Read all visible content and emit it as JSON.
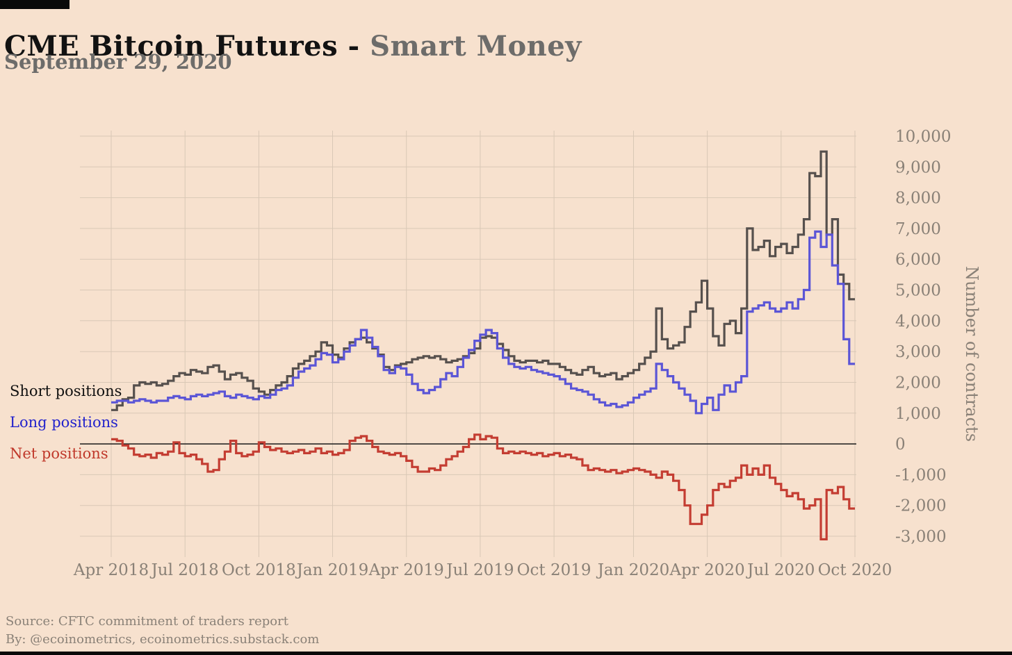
{
  "page": {
    "title_main": "CME Bitcoin Futures - ",
    "title_accent": "Smart Money",
    "subtitle": "September 29, 2020",
    "footer_line1": "Source: CFTC commitment of traders report",
    "footer_line2": "By: @ecoinometrics, ecoinometrics.substack.com"
  },
  "colors": {
    "background": "#f7e1ce",
    "grid": "#d9c8b6",
    "zero_line": "#1a1a1a",
    "tick_text": "#8a8177",
    "short_line": "#56504d",
    "long_line": "#5b55d6",
    "net_line": "#c43d32",
    "short_label": "#111111",
    "long_label": "#2222cc",
    "net_label": "#c0392b"
  },
  "chart_data": {
    "type": "line",
    "style": "step",
    "title": "CME Bitcoin Futures - Smart Money",
    "subtitle": "September 29, 2020",
    "ylabel_right": "Number of contracts",
    "ylim": [
      -3000,
      10000
    ],
    "y_tick_step": 1000,
    "grid": true,
    "legend_position": "left-inline",
    "frequency": "weekly",
    "x_range": [
      "Apr 2018",
      "Sep 2020"
    ],
    "x_tick_labels": [
      "Apr 2018",
      "Jul 2018",
      "Oct 2018",
      "Jan 2019",
      "Apr 2019",
      "Jul 2019",
      "Oct 2019",
      "Jan 2020",
      "Apr 2020",
      "Jul 2020",
      "Oct 2020"
    ],
    "x_tick_week_indices": [
      0,
      13,
      26,
      39,
      52,
      65,
      78,
      92,
      105,
      118,
      131
    ],
    "series": [
      {
        "name": "Short positions",
        "color": "#56504d",
        "values": [
          1100,
          1250,
          1450,
          1500,
          1900,
          2000,
          1950,
          2000,
          1900,
          1950,
          2050,
          2200,
          2300,
          2250,
          2400,
          2350,
          2300,
          2500,
          2550,
          2350,
          2100,
          2250,
          2300,
          2150,
          2050,
          1800,
          1700,
          1600,
          1750,
          1900,
          2000,
          2200,
          2450,
          2600,
          2700,
          2850,
          3000,
          3300,
          3200,
          2900,
          2800,
          3100,
          3300,
          3400,
          3450,
          3300,
          3100,
          2900,
          2500,
          2400,
          2550,
          2600,
          2650,
          2750,
          2800,
          2850,
          2800,
          2850,
          2750,
          2650,
          2700,
          2750,
          2850,
          2950,
          3100,
          3450,
          3500,
          3450,
          3250,
          3050,
          2850,
          2700,
          2650,
          2700,
          2700,
          2650,
          2700,
          2600,
          2600,
          2500,
          2400,
          2300,
          2250,
          2400,
          2500,
          2300,
          2200,
          2250,
          2300,
          2100,
          2200,
          2300,
          2400,
          2600,
          2800,
          3000,
          4400,
          3400,
          3100,
          3200,
          3300,
          3800,
          4300,
          4600,
          5300,
          4400,
          3500,
          3200,
          3900,
          4000,
          3600,
          4400,
          7000,
          6300,
          6400,
          6600,
          6100,
          6400,
          6500,
          6200,
          6400,
          6800,
          7300,
          8800,
          8700,
          9500,
          6800,
          7300,
          5500,
          5200,
          4700
        ]
      },
      {
        "name": "Long positions",
        "color": "#5b55d6",
        "values": [
          1350,
          1400,
          1400,
          1350,
          1400,
          1450,
          1400,
          1350,
          1400,
          1400,
          1500,
          1550,
          1500,
          1450,
          1550,
          1600,
          1550,
          1600,
          1650,
          1700,
          1550,
          1500,
          1600,
          1550,
          1500,
          1450,
          1550,
          1500,
          1600,
          1750,
          1800,
          1900,
          2150,
          2350,
          2450,
          2550,
          2750,
          2950,
          2900,
          2650,
          2750,
          3000,
          3200,
          3400,
          3700,
          3450,
          3150,
          2850,
          2400,
          2300,
          2500,
          2450,
          2250,
          1950,
          1750,
          1650,
          1750,
          1850,
          2100,
          2300,
          2200,
          2500,
          2800,
          3050,
          3350,
          3550,
          3700,
          3600,
          3100,
          2800,
          2600,
          2500,
          2450,
          2500,
          2400,
          2350,
          2300,
          2250,
          2200,
          2100,
          1950,
          1800,
          1750,
          1700,
          1600,
          1450,
          1350,
          1250,
          1300,
          1200,
          1250,
          1350,
          1500,
          1600,
          1700,
          1800,
          2600,
          2400,
          2200,
          2000,
          1800,
          1600,
          1400,
          1000,
          1300,
          1500,
          1100,
          1600,
          1900,
          1700,
          2000,
          2200,
          4300,
          4400,
          4500,
          4600,
          4400,
          4300,
          4400,
          4600,
          4400,
          4700,
          5000,
          6700,
          6900,
          6400,
          6800,
          5800,
          5200,
          3400,
          2600
        ]
      },
      {
        "name": "Net positions",
        "color": "#c43d32",
        "values": [
          150,
          100,
          -50,
          -150,
          -350,
          -400,
          -350,
          -450,
          -300,
          -350,
          -250,
          50,
          -300,
          -400,
          -350,
          -500,
          -650,
          -900,
          -850,
          -500,
          -250,
          100,
          -300,
          -400,
          -350,
          -250,
          50,
          -100,
          -200,
          -150,
          -250,
          -300,
          -250,
          -200,
          -300,
          -250,
          -150,
          -300,
          -250,
          -350,
          -300,
          -200,
          100,
          200,
          250,
          100,
          -100,
          -250,
          -300,
          -350,
          -300,
          -400,
          -550,
          -750,
          -900,
          -900,
          -800,
          -850,
          -700,
          -500,
          -400,
          -250,
          -100,
          150,
          300,
          150,
          250,
          200,
          -150,
          -300,
          -250,
          -300,
          -250,
          -300,
          -350,
          -300,
          -400,
          -350,
          -300,
          -400,
          -350,
          -450,
          -500,
          -700,
          -850,
          -800,
          -850,
          -900,
          -850,
          -950,
          -900,
          -850,
          -800,
          -850,
          -900,
          -1000,
          -1100,
          -900,
          -1000,
          -1200,
          -1500,
          -2000,
          -2600,
          -2600,
          -2300,
          -2000,
          -1500,
          -1300,
          -1400,
          -1200,
          -1100,
          -700,
          -1000,
          -800,
          -1000,
          -700,
          -1100,
          -1300,
          -1500,
          -1700,
          -1600,
          -1800,
          -2100,
          -2000,
          -1800,
          -3100,
          -1500,
          -1600,
          -1400,
          -1800,
          -2100
        ]
      }
    ]
  }
}
